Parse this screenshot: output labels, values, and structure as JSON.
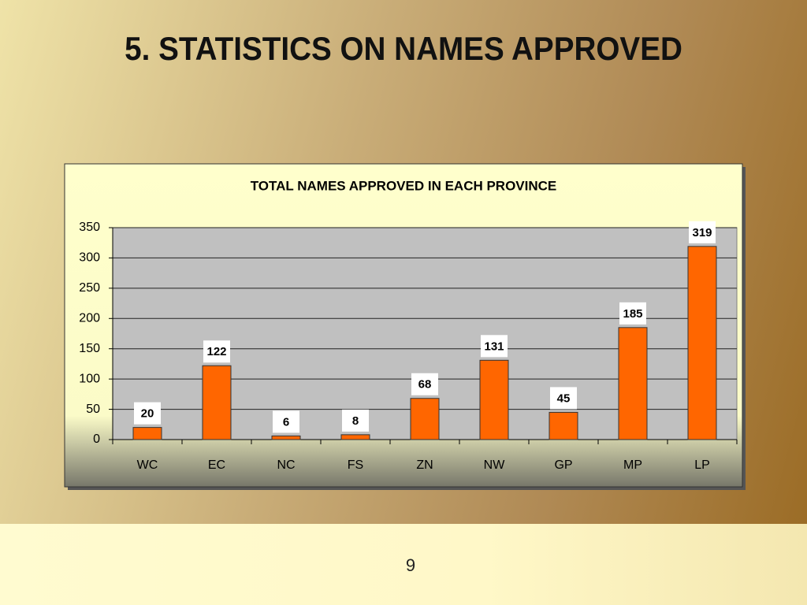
{
  "title": "5. STATISTICS ON NAMES APPROVED",
  "page_number": "9",
  "chart_data": {
    "type": "bar",
    "title": "TOTAL NAMES APPROVED IN EACH PROVINCE",
    "categories": [
      "WC",
      "EC",
      "NC",
      "FS",
      "ZN",
      "NW",
      "GP",
      "MP",
      "LP"
    ],
    "values": [
      20,
      122,
      6,
      8,
      68,
      131,
      45,
      185,
      319
    ],
    "color": "#ff6600",
    "ylim": [
      0,
      350
    ],
    "yticks": [
      0,
      50,
      100,
      150,
      200,
      250,
      300,
      350
    ],
    "grid": true
  }
}
